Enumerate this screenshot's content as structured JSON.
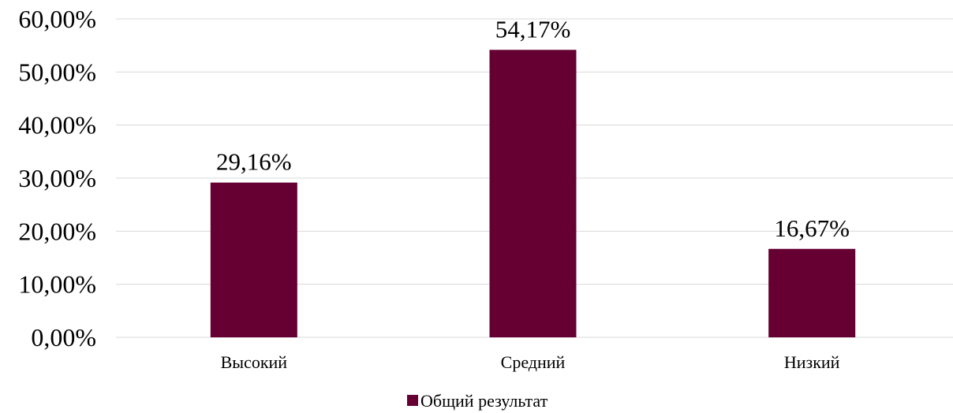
{
  "chart_data": {
    "type": "bar",
    "categories": [
      "Высокий",
      "Средний",
      "Низкий"
    ],
    "series": [
      {
        "name": "Общий результат",
        "values": [
          29.16,
          54.17,
          16.67
        ],
        "labels": [
          "29,16%",
          "54,17%",
          "16,67%"
        ],
        "color": "#660033"
      }
    ],
    "yticks": [
      {
        "value": 0,
        "label": "0,00%"
      },
      {
        "value": 10,
        "label": "10,00%"
      },
      {
        "value": 20,
        "label": "20,00%"
      },
      {
        "value": 30,
        "label": "30,00%"
      },
      {
        "value": 40,
        "label": "40,00%"
      },
      {
        "value": 50,
        "label": "50,00%"
      },
      {
        "value": 60,
        "label": "60,00%"
      }
    ],
    "ylim": [
      0,
      60
    ],
    "grid": true,
    "gridColor": "#d9d9d9",
    "legend": "bottom-center",
    "title": "",
    "xlabel": "",
    "ylabel": ""
  }
}
